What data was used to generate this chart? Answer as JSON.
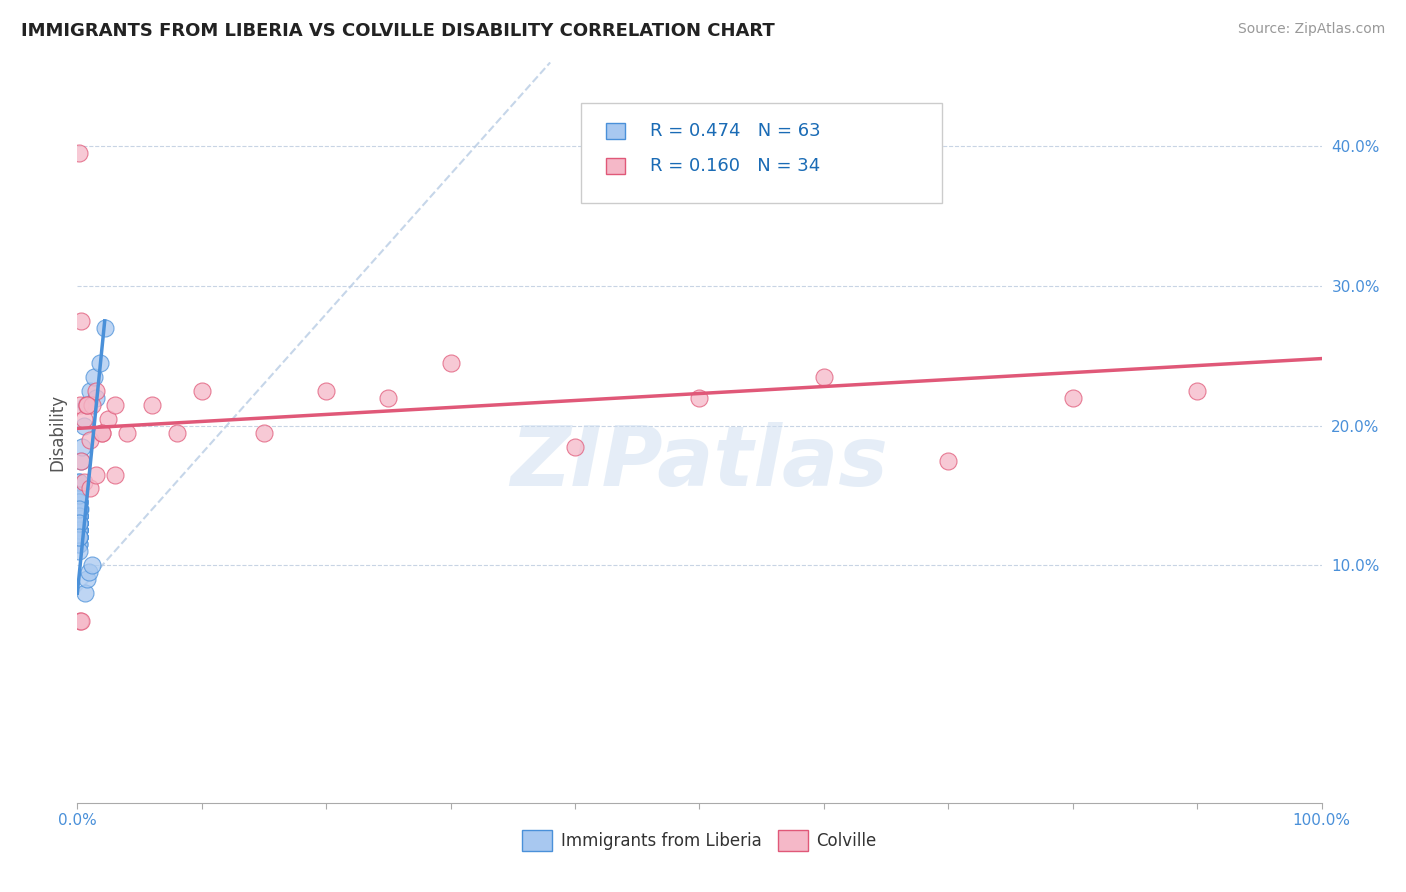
{
  "title": "IMMIGRANTS FROM LIBERIA VS COLVILLE DISABILITY CORRELATION CHART",
  "source": "Source: ZipAtlas.com",
  "ylabel": "Disability",
  "xlim": [
    0.0,
    1.0
  ],
  "ylim": [
    -0.07,
    0.46
  ],
  "blue_R": 0.474,
  "blue_N": 63,
  "pink_R": 0.16,
  "pink_N": 34,
  "blue_color": "#a8c8f0",
  "pink_color": "#f5b8c8",
  "blue_line_color": "#4a90d9",
  "pink_line_color": "#e05878",
  "dashed_line_color": "#b8cce4",
  "watermark": "ZIPatlas",
  "legend_label_blue": "Immigrants from Liberia",
  "legend_label_pink": "Colville",
  "blue_line_x0": 0.0,
  "blue_line_y0": 0.08,
  "blue_line_x1": 0.022,
  "blue_line_y1": 0.275,
  "dash_line_x0": 0.0,
  "dash_line_y0": 0.08,
  "dash_line_x1": 0.38,
  "dash_line_y1": 0.46,
  "pink_line_x0": 0.0,
  "pink_line_y0": 0.198,
  "pink_line_x1": 1.0,
  "pink_line_y1": 0.248,
  "yticks": [
    0.0,
    0.1,
    0.2,
    0.3,
    0.4
  ],
  "ytick_labels": [
    "",
    "10.0%",
    "20.0%",
    "30.0%",
    "40.0%"
  ],
  "xtick_pos": [
    0.0,
    0.5,
    1.0
  ],
  "xtick_labels_show": [
    "0.0%",
    "",
    "100.0%"
  ],
  "blue_scatter_x": [
    0.001,
    0.0015,
    0.001,
    0.001,
    0.002,
    0.0008,
    0.001,
    0.0012,
    0.001,
    0.001,
    0.001,
    0.001,
    0.0015,
    0.001,
    0.001,
    0.0008,
    0.001,
    0.001,
    0.001,
    0.001,
    0.001,
    0.001,
    0.001,
    0.001,
    0.001,
    0.001,
    0.001,
    0.001,
    0.001,
    0.001,
    0.001,
    0.001,
    0.001,
    0.001,
    0.001,
    0.001,
    0.001,
    0.0008,
    0.001,
    0.001,
    0.001,
    0.001,
    0.001,
    0.001,
    0.001,
    0.001,
    0.001,
    0.001,
    0.001,
    0.001,
    0.003,
    0.004,
    0.005,
    0.007,
    0.01,
    0.013,
    0.015,
    0.018,
    0.022,
    0.006,
    0.008,
    0.009,
    0.012
  ],
  "blue_scatter_y": [
    0.135,
    0.145,
    0.155,
    0.125,
    0.14,
    0.15,
    0.13,
    0.12,
    0.16,
    0.145,
    0.135,
    0.125,
    0.14,
    0.13,
    0.115,
    0.15,
    0.13,
    0.14,
    0.125,
    0.135,
    0.12,
    0.13,
    0.14,
    0.125,
    0.135,
    0.145,
    0.13,
    0.12,
    0.14,
    0.135,
    0.12,
    0.125,
    0.13,
    0.115,
    0.14,
    0.125,
    0.13,
    0.12,
    0.135,
    0.145,
    0.16,
    0.135,
    0.125,
    0.15,
    0.12,
    0.13,
    0.14,
    0.13,
    0.11,
    0.12,
    0.175,
    0.185,
    0.2,
    0.215,
    0.225,
    0.235,
    0.22,
    0.245,
    0.27,
    0.08,
    0.09,
    0.095,
    0.1
  ],
  "pink_scatter_x": [
    0.001,
    0.002,
    0.003,
    0.005,
    0.008,
    0.01,
    0.012,
    0.015,
    0.02,
    0.025,
    0.03,
    0.04,
    0.06,
    0.08,
    0.1,
    0.15,
    0.2,
    0.25,
    0.3,
    0.4,
    0.5,
    0.6,
    0.7,
    0.8,
    0.9,
    0.003,
    0.005,
    0.01,
    0.015,
    0.02,
    0.008,
    0.03,
    0.002,
    0.003
  ],
  "pink_scatter_y": [
    0.395,
    0.215,
    0.275,
    0.205,
    0.215,
    0.19,
    0.215,
    0.225,
    0.195,
    0.205,
    0.215,
    0.195,
    0.215,
    0.195,
    0.225,
    0.195,
    0.225,
    0.22,
    0.245,
    0.185,
    0.22,
    0.235,
    0.175,
    0.22,
    0.225,
    0.175,
    0.16,
    0.155,
    0.165,
    0.195,
    0.215,
    0.165,
    0.06,
    0.06
  ]
}
